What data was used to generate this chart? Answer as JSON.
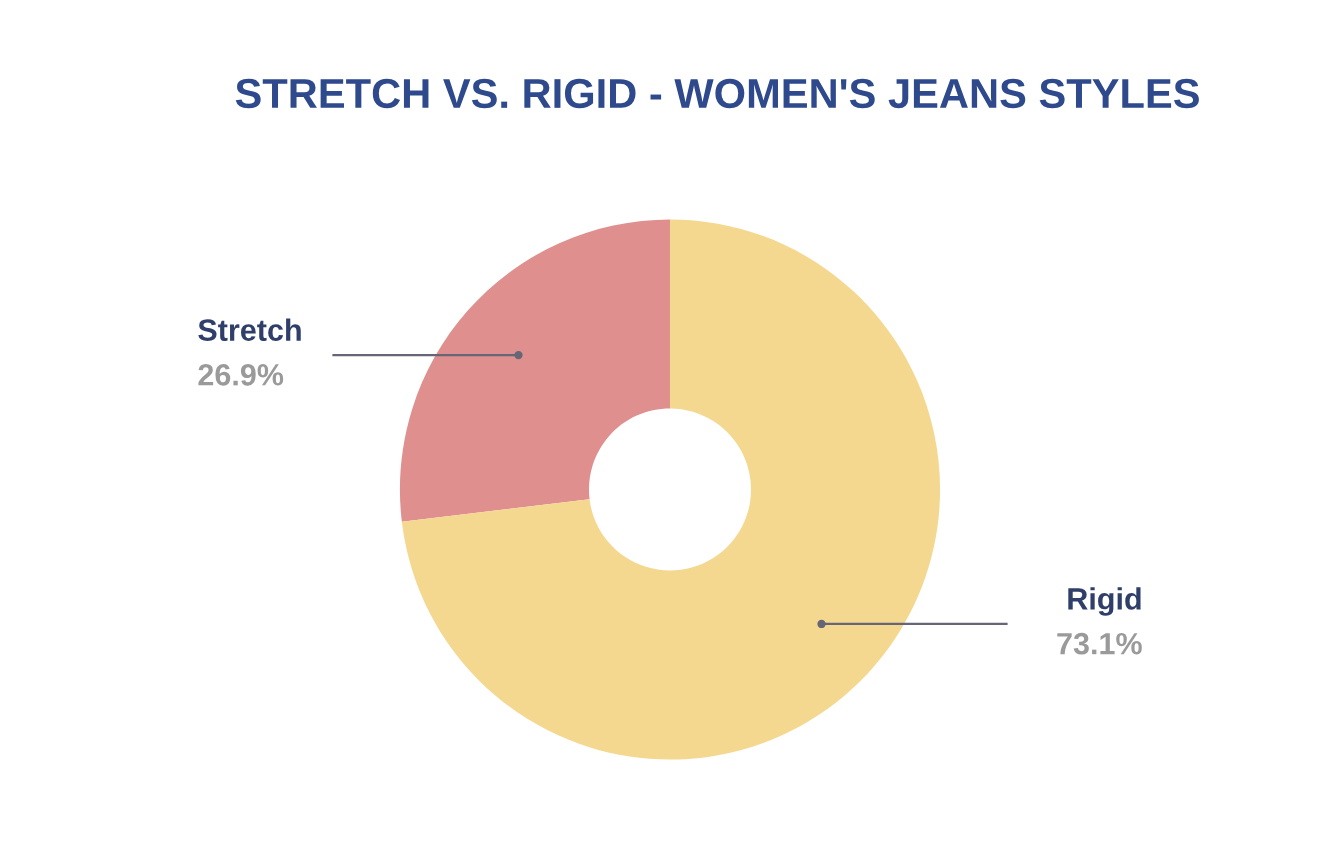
{
  "chart_data": {
    "type": "donut",
    "title": "STRETCH VS. RIGID - WOMEN'S JEANS STYLES",
    "categories": [
      "Stretch",
      "Rigid"
    ],
    "values": [
      26.9,
      73.1
    ],
    "colors": [
      "#e08f8f",
      "#f5d88f"
    ],
    "value_labels": [
      "26.9%",
      "73.1%"
    ],
    "legend": false
  }
}
